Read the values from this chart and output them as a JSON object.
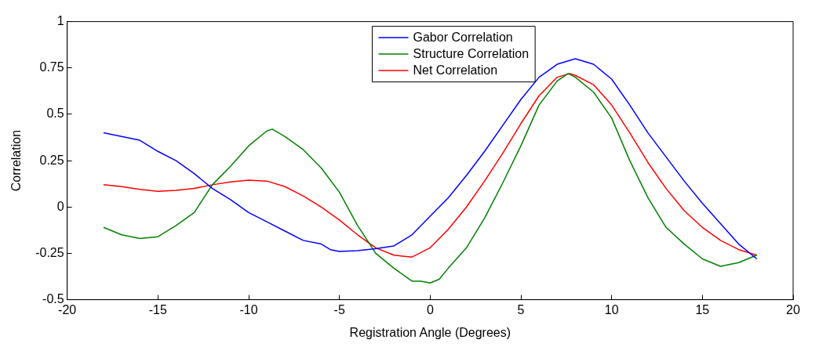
{
  "chart_data": {
    "type": "line",
    "xlabel": "Registration Angle (Degrees)",
    "ylabel": "Correlation",
    "xlim": [
      -20,
      20
    ],
    "xticks": [
      -20,
      -15,
      -10,
      -5,
      0,
      5,
      10,
      15,
      20
    ],
    "ylim": [
      -0.5,
      1
    ],
    "yticks": [
      -0.5,
      -0.25,
      0,
      0.25,
      0.5,
      0.75,
      1
    ],
    "legend": "top",
    "grid": false,
    "marker": "none",
    "line_style": "solid",
    "series": [
      {
        "name": "Gabor Correlation",
        "color": "#0000ff",
        "x": [
          -18,
          -17,
          -16,
          -15,
          -14,
          -13,
          -12,
          -11,
          -10,
          -9,
          -8,
          -7,
          -6,
          -5.5,
          -5,
          -4,
          -3,
          -2,
          -1,
          0,
          1,
          2,
          3,
          4,
          5,
          6,
          7,
          8,
          9,
          10,
          11,
          12,
          13,
          14,
          15,
          16,
          17,
          18
        ],
        "values": [
          0.4,
          0.38,
          0.36,
          0.3,
          0.25,
          0.18,
          0.1,
          0.04,
          -0.03,
          -0.08,
          -0.13,
          -0.18,
          -0.2,
          -0.23,
          -0.24,
          -0.235,
          -0.225,
          -0.21,
          -0.15,
          -0.05,
          0.05,
          0.17,
          0.3,
          0.44,
          0.58,
          0.7,
          0.77,
          0.8,
          0.77,
          0.69,
          0.55,
          0.4,
          0.27,
          0.14,
          0.02,
          -0.09,
          -0.2,
          -0.28
        ]
      },
      {
        "name": "Structure Correlation",
        "color": "#008000",
        "x": [
          -18,
          -17,
          -16,
          -15,
          -14,
          -13,
          -12,
          -11,
          -10,
          -9,
          -8.7,
          -8,
          -7,
          -6,
          -5,
          -4,
          -3,
          -2,
          -1,
          -0.5,
          0,
          0.5,
          1,
          2,
          3,
          4,
          5,
          6,
          7,
          7.6,
          8,
          9,
          10,
          11,
          12,
          13,
          14,
          15,
          16,
          17,
          18
        ],
        "values": [
          -0.11,
          -0.15,
          -0.17,
          -0.16,
          -0.1,
          -0.03,
          0.12,
          0.22,
          0.33,
          0.41,
          0.42,
          0.38,
          0.31,
          0.21,
          0.08,
          -0.1,
          -0.25,
          -0.33,
          -0.4,
          -0.4,
          -0.41,
          -0.39,
          -0.33,
          -0.22,
          -0.06,
          0.13,
          0.33,
          0.55,
          0.68,
          0.72,
          0.7,
          0.62,
          0.48,
          0.25,
          0.05,
          -0.11,
          -0.2,
          -0.28,
          -0.32,
          -0.3,
          -0.26
        ]
      },
      {
        "name": "Net Correlation",
        "color": "#ff0000",
        "x": [
          -18,
          -17,
          -16,
          -15,
          -14,
          -13,
          -12,
          -11,
          -10,
          -9,
          -8,
          -7,
          -6,
          -5,
          -4,
          -3,
          -2,
          -1,
          0,
          1,
          2,
          3,
          4,
          5,
          6,
          7,
          7.7,
          8,
          9,
          10,
          11,
          12,
          13,
          14,
          15,
          16,
          17,
          18
        ],
        "values": [
          0.12,
          0.11,
          0.095,
          0.085,
          0.09,
          0.1,
          0.12,
          0.135,
          0.145,
          0.14,
          0.11,
          0.06,
          0,
          -0.07,
          -0.15,
          -0.22,
          -0.26,
          -0.27,
          -0.22,
          -0.12,
          0,
          0.14,
          0.29,
          0.45,
          0.6,
          0.7,
          0.72,
          0.71,
          0.66,
          0.55,
          0.4,
          0.24,
          0.1,
          -0.02,
          -0.11,
          -0.18,
          -0.23,
          -0.26
        ]
      }
    ]
  }
}
